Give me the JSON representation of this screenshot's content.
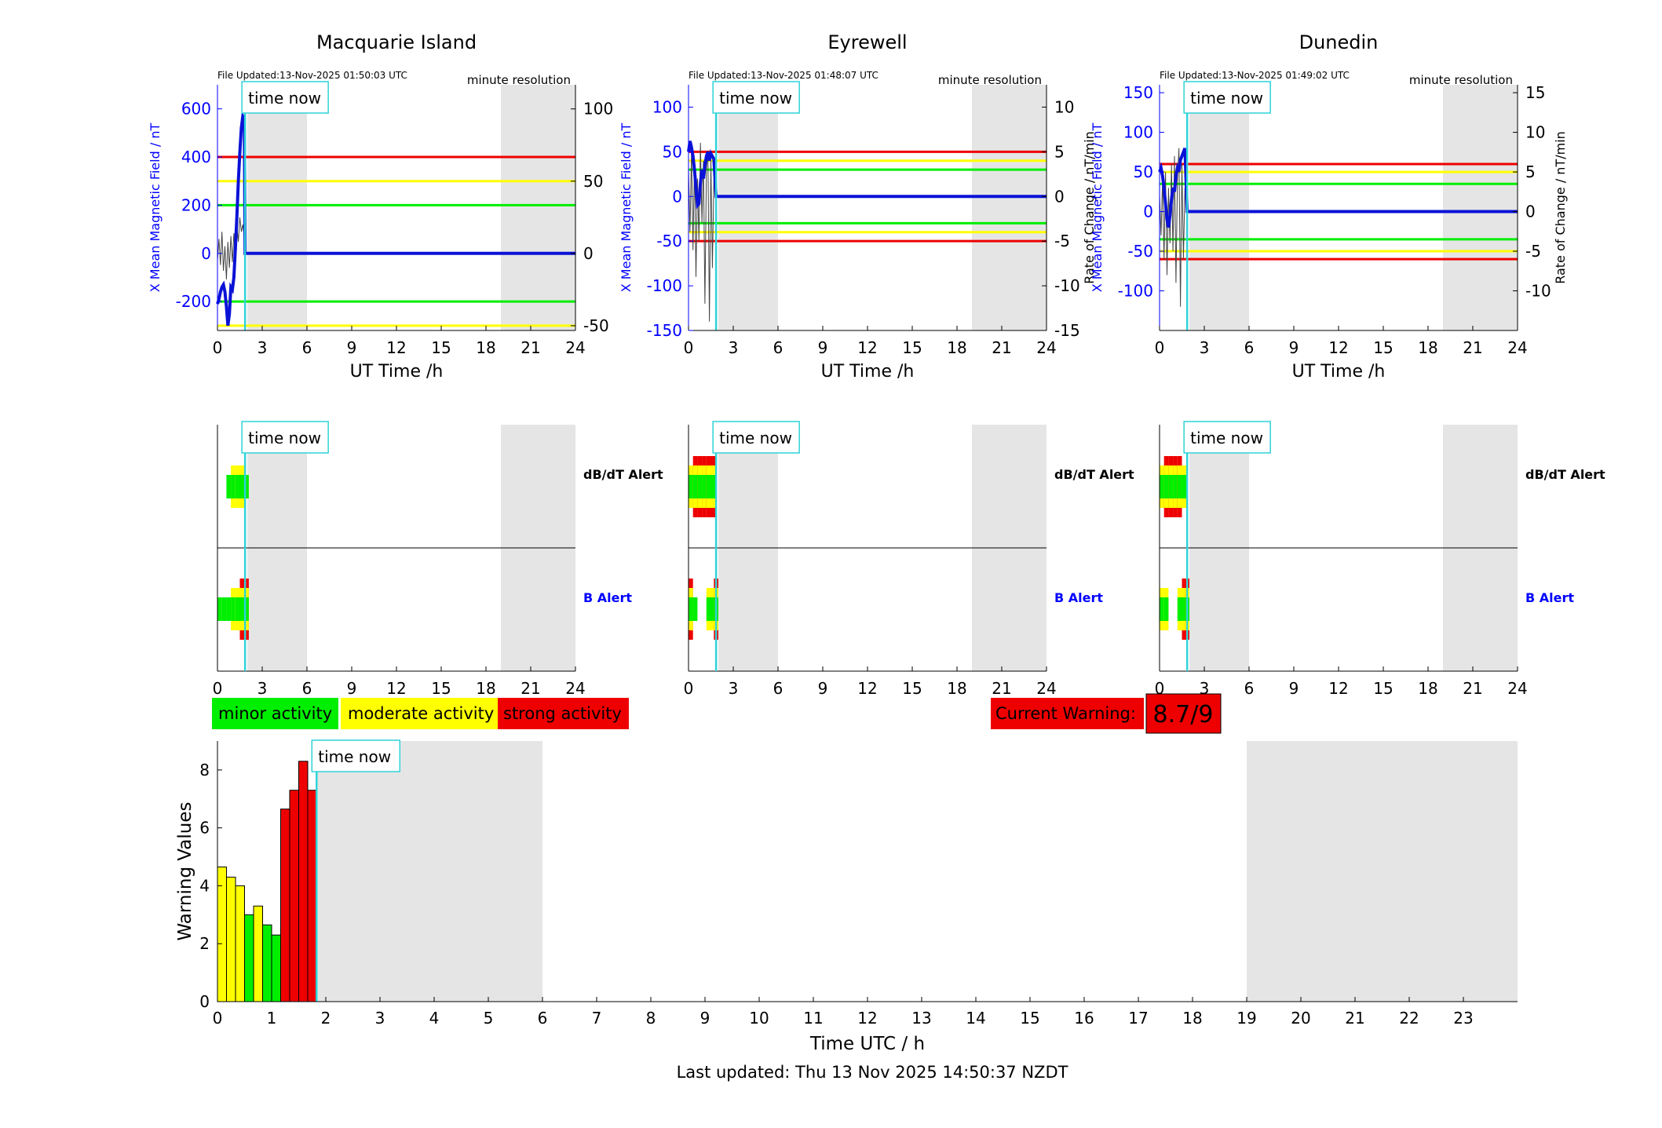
{
  "colors": {
    "background": "#ffffff",
    "night_shade": "#e5e5e5",
    "field": "#0a12d6",
    "rate": "#444444",
    "time_now": "#2fd3d9",
    "green": "#00ee00",
    "yellow": "#ffff00",
    "red": "#ee0000",
    "axis_blue": "#0000ff"
  },
  "footer": {
    "last_updated": "Last updated: Thu 13 Nov 2025 14:50:37 NZDT"
  },
  "legend": {
    "minor": "minor activity",
    "moderate": "moderate activity",
    "strong": "strong activity",
    "current_warning_label": "Current Warning:",
    "current_warning_value": "8.7/9"
  },
  "chart_data": [
    {
      "type": "line",
      "title": "Macquarie Island",
      "file_updated": "File Updated:13-Nov-2025 01:50:03 UTC",
      "resolution": "minute resolution",
      "time_now_label": "time now",
      "time_now": 1.85,
      "night": [
        [
          2.0,
          6.0
        ],
        [
          19.0,
          24.0
        ]
      ],
      "xlabel": "UT Time /h",
      "ylabel_left": "X Mean Magnetic Field / nT",
      "ylabel_right": "",
      "xlim": [
        0,
        24
      ],
      "xticks": [
        0,
        3,
        6,
        9,
        12,
        15,
        18,
        21,
        24
      ],
      "ylim_left": [
        -320,
        700
      ],
      "yticks_left": [
        -200,
        0,
        200,
        400,
        600
      ],
      "ylim_right": [
        -53.3,
        116.7
      ],
      "yticks_right": [
        -50,
        0,
        50,
        100
      ],
      "thresholds_left": [
        {
          "level": "red",
          "value": 400
        },
        {
          "level": "yellow",
          "value": 300
        },
        {
          "level": "green",
          "value": 200
        },
        {
          "level": "green",
          "value": -200
        },
        {
          "level": "yellow",
          "value": -300
        }
      ],
      "field_series": {
        "x": [
          0,
          0.1,
          0.2,
          0.3,
          0.4,
          0.5,
          0.6,
          0.7,
          0.8,
          0.9,
          1.0,
          1.1,
          1.2,
          1.3,
          1.4,
          1.5,
          1.6,
          1.7,
          1.8,
          1.85,
          24
        ],
        "y": [
          -210,
          -190,
          -160,
          -140,
          -130,
          -160,
          -220,
          -300,
          -250,
          -140,
          -150,
          -100,
          20,
          150,
          300,
          420,
          520,
          570,
          560,
          0,
          0
        ]
      },
      "rate_series": {
        "x": [
          0,
          0.1,
          0.2,
          0.3,
          0.4,
          0.5,
          0.6,
          0.7,
          0.8,
          0.9,
          1.0,
          1.1,
          1.2,
          1.3,
          1.4,
          1.5,
          1.6,
          1.7,
          1.8
        ],
        "y": [
          -5,
          10,
          -8,
          15,
          -12,
          5,
          -18,
          8,
          -10,
          12,
          -6,
          14,
          -4,
          20,
          8,
          25,
          15,
          20,
          10
        ]
      },
      "alert_panel": {
        "dbdt_label": "dB/dT Alert",
        "b_label": "B Alert",
        "time_now_label": "time now",
        "xticks": [
          0,
          3,
          6,
          9,
          12,
          15,
          18,
          21,
          24
        ],
        "dbdt_bars": [
          {
            "x": 0.6,
            "level": 1
          },
          {
            "x": 0.9,
            "level": 2
          },
          {
            "x": 1.2,
            "level": 2
          },
          {
            "x": 1.5,
            "level": 2
          },
          {
            "x": 1.8,
            "level": 1
          }
        ],
        "b_bars": [
          {
            "x": 0.0,
            "level": 1
          },
          {
            "x": 0.3,
            "level": 1
          },
          {
            "x": 0.6,
            "level": 1
          },
          {
            "x": 0.9,
            "level": 2
          },
          {
            "x": 1.2,
            "level": 2
          },
          {
            "x": 1.5,
            "level": 3
          },
          {
            "x": 1.8,
            "level": 3
          }
        ]
      }
    },
    {
      "type": "line",
      "title": "Eyrewell",
      "file_updated": "File Updated:13-Nov-2025 01:48:07 UTC",
      "resolution": "minute resolution",
      "time_now_label": "time now",
      "time_now": 1.85,
      "night": [
        [
          2.0,
          6.0
        ],
        [
          19.0,
          24.0
        ]
      ],
      "xlabel": "UT Time /h",
      "ylabel_left": "X Mean Magnetic Field / nT",
      "ylabel_right": "Rate of Change / nT/min",
      "xlim": [
        0,
        24
      ],
      "xticks": [
        0,
        3,
        6,
        9,
        12,
        15,
        18,
        21,
        24
      ],
      "ylim_left": [
        -150,
        125
      ],
      "yticks_left": [
        -150,
        -100,
        -50,
        0,
        50,
        100
      ],
      "ylim_right": [
        -15,
        12.5
      ],
      "yticks_right": [
        -15,
        -10,
        -5,
        0,
        5,
        10
      ],
      "thresholds_left": [
        {
          "level": "red",
          "value": 50
        },
        {
          "level": "yellow",
          "value": 40
        },
        {
          "level": "green",
          "value": 30
        },
        {
          "level": "green",
          "value": -30
        },
        {
          "level": "yellow",
          "value": -40
        },
        {
          "level": "red",
          "value": -50
        }
      ],
      "field_series": {
        "x": [
          0,
          0.1,
          0.2,
          0.3,
          0.4,
          0.5,
          0.6,
          0.7,
          0.8,
          0.9,
          1.0,
          1.1,
          1.2,
          1.3,
          1.4,
          1.5,
          1.6,
          1.7,
          1.85,
          24
        ],
        "y": [
          50,
          62,
          55,
          45,
          30,
          10,
          -10,
          -8,
          15,
          30,
          20,
          35,
          45,
          50,
          40,
          48,
          45,
          42,
          0,
          0
        ]
      },
      "rate_series": {
        "x": [
          0,
          0.1,
          0.2,
          0.3,
          0.4,
          0.5,
          0.6,
          0.7,
          0.8,
          0.9,
          1.0,
          1.1,
          1.2,
          1.3,
          1.4,
          1.5,
          1.6,
          1.7
        ],
        "y": [
          3,
          -4,
          5,
          -6,
          4,
          -9,
          2,
          -5,
          6,
          -3,
          4,
          -12,
          3,
          5,
          -14,
          4,
          -8,
          2
        ]
      },
      "alert_panel": {
        "dbdt_label": "dB/dT Alert",
        "b_label": "B Alert",
        "time_now_label": "time now",
        "xticks": [
          0,
          3,
          6,
          9,
          12,
          15,
          18,
          21,
          24
        ],
        "dbdt_bars": [
          {
            "x": 0.0,
            "level": 2
          },
          {
            "x": 0.3,
            "level": 3
          },
          {
            "x": 0.6,
            "level": 3
          },
          {
            "x": 0.9,
            "level": 3
          },
          {
            "x": 1.2,
            "level": 3
          },
          {
            "x": 1.5,
            "level": 3
          }
        ],
        "b_bars": [
          {
            "x": 0.0,
            "level": 3
          },
          {
            "x": 0.3,
            "level": 1
          },
          {
            "x": 1.2,
            "level": 2
          },
          {
            "x": 1.5,
            "level": 2
          },
          {
            "x": 1.7,
            "level": 3
          }
        ]
      }
    },
    {
      "type": "line",
      "title": "Dunedin",
      "file_updated": "File Updated:13-Nov-2025 01:49:02 UTC",
      "resolution": "minute resolution",
      "time_now_label": "time now",
      "time_now": 1.85,
      "night": [
        [
          2.0,
          6.0
        ],
        [
          19.0,
          24.0
        ]
      ],
      "xlabel": "UT Time /h",
      "ylabel_left": "X Mean Magnetic Field / nT",
      "ylabel_right": "Rate of Change / nT/min",
      "xlim": [
        0,
        24
      ],
      "xticks": [
        0,
        3,
        6,
        9,
        12,
        15,
        18,
        21,
        24
      ],
      "ylim_left": [
        -150,
        160
      ],
      "yticks_left": [
        -100,
        -50,
        0,
        50,
        100,
        150
      ],
      "ylim_right": [
        -15,
        16
      ],
      "yticks_right": [
        -10,
        -5,
        0,
        5,
        10,
        15
      ],
      "thresholds_left": [
        {
          "level": "red",
          "value": 60
        },
        {
          "level": "yellow",
          "value": 50
        },
        {
          "level": "green",
          "value": 35
        },
        {
          "level": "green",
          "value": -35
        },
        {
          "level": "yellow",
          "value": -50
        },
        {
          "level": "red",
          "value": -60
        }
      ],
      "field_series": {
        "x": [
          0,
          0.1,
          0.2,
          0.3,
          0.4,
          0.5,
          0.6,
          0.7,
          0.8,
          0.9,
          1.0,
          1.1,
          1.2,
          1.3,
          1.4,
          1.5,
          1.6,
          1.7,
          1.85,
          24
        ],
        "y": [
          50,
          55,
          45,
          30,
          10,
          -10,
          -20,
          -5,
          15,
          30,
          25,
          45,
          55,
          50,
          65,
          70,
          75,
          80,
          0,
          0
        ]
      },
      "rate_series": {
        "x": [
          0,
          0.1,
          0.2,
          0.3,
          0.4,
          0.5,
          0.6,
          0.7,
          0.8,
          0.9,
          1.0,
          1.1,
          1.2,
          1.3,
          1.4,
          1.5,
          1.6,
          1.7
        ],
        "y": [
          2,
          -3,
          4,
          -6,
          5,
          -8,
          3,
          -4,
          6,
          -5,
          7,
          -9,
          4,
          8,
          -12,
          6,
          -6,
          3
        ]
      },
      "alert_panel": {
        "dbdt_label": "dB/dT Alert",
        "b_label": "B Alert",
        "time_now_label": "time now",
        "xticks": [
          0,
          3,
          6,
          9,
          12,
          15,
          18,
          21,
          24
        ],
        "dbdt_bars": [
          {
            "x": 0.0,
            "level": 2
          },
          {
            "x": 0.3,
            "level": 3
          },
          {
            "x": 0.6,
            "level": 3
          },
          {
            "x": 0.9,
            "level": 3
          },
          {
            "x": 1.2,
            "level": 3
          },
          {
            "x": 1.5,
            "level": 2
          }
        ],
        "b_bars": [
          {
            "x": 0.0,
            "level": 2
          },
          {
            "x": 0.3,
            "level": 2
          },
          {
            "x": 1.2,
            "level": 2
          },
          {
            "x": 1.5,
            "level": 3
          },
          {
            "x": 1.7,
            "level": 3
          }
        ]
      }
    },
    {
      "type": "bar",
      "title": "",
      "xlabel": "Time UTC / h",
      "ylabel": "Warning Values",
      "xlim": [
        0,
        24
      ],
      "ylim": [
        0,
        9
      ],
      "xticks": [
        0,
        1,
        2,
        3,
        4,
        5,
        6,
        7,
        8,
        9,
        10,
        11,
        12,
        13,
        14,
        15,
        16,
        17,
        18,
        19,
        20,
        21,
        22,
        23
      ],
      "yticks": [
        0,
        2,
        4,
        6,
        8
      ],
      "night": [
        [
          1.85,
          6.0
        ],
        [
          19.0,
          24.0
        ]
      ],
      "time_now_label": "time now",
      "time_now": 1.83,
      "bar_width": 0.1667,
      "bars": [
        {
          "x": 0.0,
          "value": 4.65,
          "level": "yellow"
        },
        {
          "x": 0.1667,
          "value": 4.3,
          "level": "yellow"
        },
        {
          "x": 0.3333,
          "value": 4.0,
          "level": "yellow"
        },
        {
          "x": 0.5,
          "value": 3.0,
          "level": "green"
        },
        {
          "x": 0.6667,
          "value": 3.3,
          "level": "yellow"
        },
        {
          "x": 0.8333,
          "value": 2.65,
          "level": "green"
        },
        {
          "x": 1.0,
          "value": 2.3,
          "level": "green"
        },
        {
          "x": 1.1667,
          "value": 6.65,
          "level": "red"
        },
        {
          "x": 1.3333,
          "value": 7.3,
          "level": "red"
        },
        {
          "x": 1.5,
          "value": 8.3,
          "level": "red"
        },
        {
          "x": 1.6667,
          "value": 7.3,
          "level": "red"
        }
      ]
    }
  ]
}
